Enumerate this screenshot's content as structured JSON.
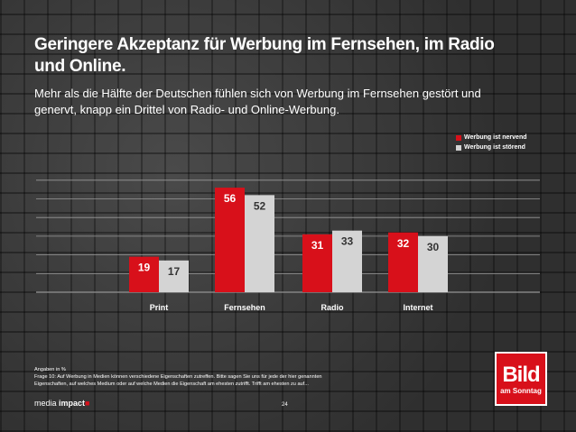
{
  "title": "Geringere Akzeptanz für Werbung im Fernsehen, im Radio und Online.",
  "subtitle": "Mehr als die Hälfte der Deutschen fühlen sich von Werbung im Fernsehen gestört und genervt, knapp ein Drittel von Radio- und Online-Werbung.",
  "chart_data": {
    "type": "bar",
    "categories": [
      "Print",
      "Fernsehen",
      "Radio",
      "Internet"
    ],
    "series": [
      {
        "name": "Werbung ist nervend",
        "color": "#d8101a",
        "values": [
          19,
          56,
          31,
          32
        ]
      },
      {
        "name": "Werbung ist störend",
        "color": "#d4d4d4",
        "values": [
          17,
          52,
          33,
          30
        ]
      }
    ],
    "ylim": [
      0,
      70
    ],
    "grid": true,
    "legend": "top-right"
  },
  "footnote": {
    "line1": "Angaben in %",
    "line2": "Frage 10: Auf Werbung in Medien können verschiedene Eigenschaften zutreffen. Bitte sagen Sie uns für jede der hier genannten",
    "line3": "Eigenschaften, auf welches Medium oder auf welche Medien die Eigenschaft am ehesten zutrifft. Trifft am ehesten zu auf..."
  },
  "page_number": "24",
  "footer_logo": {
    "word1": "media",
    "word2": "impact"
  },
  "bild_logo": {
    "word": "Bild",
    "sub": "am Sonntag"
  }
}
